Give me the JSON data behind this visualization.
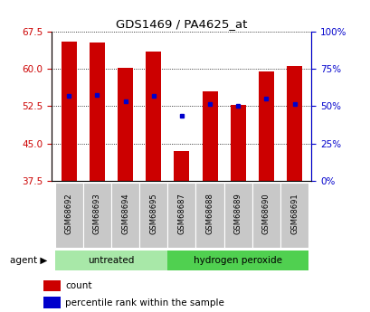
{
  "title": "GDS1469 / PA4625_at",
  "categories": [
    "GSM68692",
    "GSM68693",
    "GSM68694",
    "GSM68695",
    "GSM68687",
    "GSM68688",
    "GSM68689",
    "GSM68690",
    "GSM68691"
  ],
  "count_values": [
    65.5,
    65.3,
    60.2,
    63.5,
    43.5,
    55.5,
    52.8,
    59.5,
    60.5
  ],
  "percentile_values": [
    54.5,
    54.8,
    53.5,
    54.5,
    50.5,
    53.0,
    52.5,
    54.0,
    53.0
  ],
  "ymin": 37.5,
  "ymax": 67.5,
  "yticks": [
    37.5,
    45.0,
    52.5,
    60.0,
    67.5
  ],
  "y2ticks": [
    0,
    25,
    50,
    75,
    100
  ],
  "y2tick_labels": [
    "0%",
    "25%",
    "50%",
    "75%",
    "100%"
  ],
  "bar_color": "#cc0000",
  "dot_color": "#0000cc",
  "untreated_label": "untreated",
  "peroxide_label": "hydrogen peroxide",
  "legend_count": "count",
  "legend_percentile": "percentile rank within the sample",
  "tick_color_left": "#cc0000",
  "tick_color_right": "#0000cc",
  "background_label_row": "#c8c8c8",
  "background_group1": "#a8e8a8",
  "background_group2": "#50d050"
}
